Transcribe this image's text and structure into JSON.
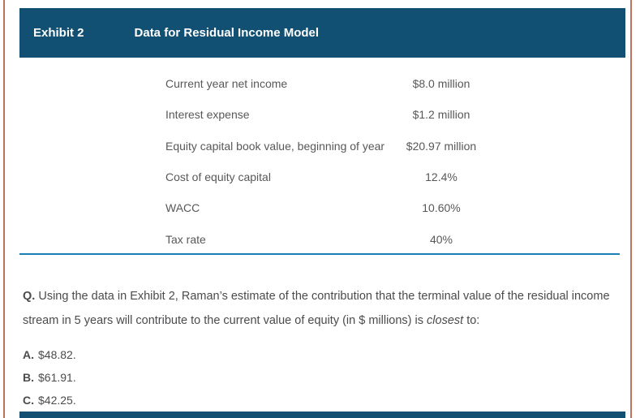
{
  "exhibit": {
    "label": "Exhibit 2",
    "title": "Data for Residual Income Model",
    "rows": [
      {
        "label": "Current year net income",
        "value": "$8.0 million"
      },
      {
        "label": "Interest expense",
        "value": "$1.2 million"
      },
      {
        "label": "Equity capital book value, beginning of year",
        "value": "$20.97 million"
      },
      {
        "label": "Cost of equity capital",
        "value": "12.4%"
      },
      {
        "label": "WACC",
        "value": "10.60%"
      },
      {
        "label": "Tax rate",
        "value": "40%"
      }
    ]
  },
  "question": {
    "prefix": "Q.",
    "text_before_italic": " Using the data in Exhibit 2, Raman’s estimate of the contribution that the terminal value of the residual income stream in 5 years will contribute to the current value of equity (in $ millions) is ",
    "italic_word": "closest",
    "text_after_italic": " to:"
  },
  "options": [
    {
      "letter": "A.",
      "text": "$48.82."
    },
    {
      "letter": "B.",
      "text": "$61.91."
    },
    {
      "letter": "C.",
      "text": "$42.25."
    }
  ],
  "colors": {
    "header_bg": "#125073",
    "rule_blue": "#1b7fb5",
    "page_border": "#c0705f",
    "table_text": "#58585a",
    "question_text": "#4b4b4d"
  }
}
